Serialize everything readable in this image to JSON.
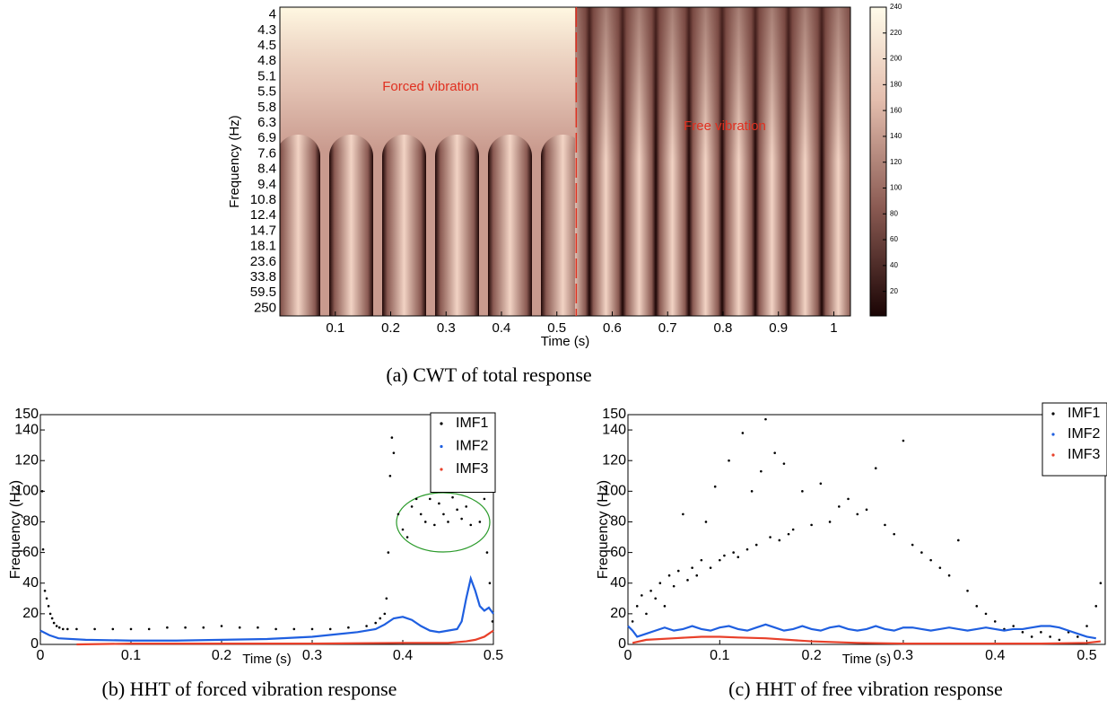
{
  "chart_data": [
    {
      "type": "heatmap",
      "caption": "(a) CWT of total response",
      "xlabel": "Time (s)",
      "ylabel": "Frequency (Hz)",
      "categories": [
        "4",
        "4.3",
        "4.5",
        "4.8",
        "5.1",
        "5.5",
        "5.8",
        "6.3",
        "6.9",
        "7.6",
        "8.4",
        "9.4",
        "10.8",
        "12.4",
        "14.7",
        "18.1",
        "23.6",
        "33.8",
        "59.5",
        "250"
      ],
      "xlim": [
        0,
        1.03
      ],
      "xticks": [
        0.1,
        0.2,
        0.3,
        0.4,
        0.5,
        0.6,
        0.7,
        0.8,
        0.9,
        1
      ],
      "annotations": [
        "Forced vibration",
        "Free vibration"
      ],
      "vline": 0.535,
      "vline_color": "#e03020",
      "colorbar": {
        "lim": [
          1,
          240
        ],
        "ticks": [
          20,
          40,
          60,
          80,
          100,
          120,
          140,
          160,
          180,
          200,
          220,
          240
        ]
      }
    },
    {
      "type": "scatter",
      "caption": "(b) HHT of forced vibration response",
      "xlabel": "Time (s)",
      "ylabel": "Frequency (Hz)",
      "xlim": [
        0,
        0.5
      ],
      "ylim": [
        0,
        150
      ],
      "xticks": [
        0,
        0.1,
        0.2,
        0.3,
        0.4,
        0.5
      ],
      "yticks": [
        0,
        20,
        40,
        60,
        80,
        100,
        120,
        140,
        150
      ],
      "legend": "upper right",
      "series": [
        {
          "name": "IMF1",
          "color": "#000000",
          "connect": false,
          "x": [
            0.002,
            0.003,
            0.005,
            0.007,
            0.009,
            0.011,
            0.013,
            0.015,
            0.018,
            0.021,
            0.025,
            0.03,
            0.04,
            0.06,
            0.08,
            0.1,
            0.12,
            0.14,
            0.16,
            0.18,
            0.2,
            0.22,
            0.24,
            0.26,
            0.28,
            0.3,
            0.32,
            0.34,
            0.36,
            0.37,
            0.375,
            0.38,
            0.382,
            0.384,
            0.386,
            0.388,
            0.39,
            0.395,
            0.4,
            0.405,
            0.41,
            0.415,
            0.42,
            0.425,
            0.43,
            0.435,
            0.44,
            0.445,
            0.45,
            0.455,
            0.46,
            0.465,
            0.47,
            0.475,
            0.48,
            0.485,
            0.49,
            0.493,
            0.496,
            0.499
          ],
          "values": [
            100,
            62,
            35,
            30,
            25,
            20,
            17,
            14,
            12,
            11,
            10,
            10,
            10,
            10,
            10,
            10,
            10,
            11,
            11,
            11,
            12,
            11,
            11,
            10,
            10,
            10,
            10,
            11,
            12,
            14,
            17,
            20,
            30,
            60,
            110,
            135,
            125,
            85,
            75,
            70,
            90,
            95,
            85,
            80,
            95,
            78,
            92,
            85,
            80,
            96,
            88,
            82,
            90,
            78,
            100,
            80,
            95,
            60,
            40,
            15
          ]
        },
        {
          "name": "IMF2",
          "color": "#1f5fe0",
          "connect": true,
          "x": [
            0,
            0.01,
            0.02,
            0.05,
            0.1,
            0.15,
            0.2,
            0.25,
            0.3,
            0.35,
            0.37,
            0.38,
            0.39,
            0.4,
            0.41,
            0.42,
            0.43,
            0.44,
            0.45,
            0.46,
            0.465,
            0.47,
            0.475,
            0.48,
            0.485,
            0.49,
            0.495,
            0.5
          ],
          "values": [
            9,
            6,
            4,
            3,
            2.5,
            2.5,
            3,
            3.5,
            5,
            8,
            10,
            13,
            17,
            18,
            16,
            12,
            9,
            8,
            9,
            10,
            15,
            30,
            43,
            35,
            25,
            22,
            24,
            20
          ]
        },
        {
          "name": "IMF3",
          "color": "#e8402a",
          "connect": true,
          "x": [
            0.04,
            0.1,
            0.2,
            0.3,
            0.4,
            0.45,
            0.47,
            0.48,
            0.49,
            0.5
          ],
          "values": [
            0,
            0.5,
            0.5,
            0.5,
            1,
            1,
            2,
            3,
            5,
            9
          ]
        }
      ]
    },
    {
      "type": "scatter",
      "caption": "(c) HHT of free vibration response",
      "xlabel": "Time (s)",
      "ylabel": "Frequency (Hz)",
      "xlim": [
        0,
        0.52
      ],
      "ylim": [
        0,
        150
      ],
      "xticks": [
        0,
        0.1,
        0.2,
        0.3,
        0.4,
        0.5
      ],
      "yticks": [
        0,
        20,
        40,
        60,
        80,
        100,
        120,
        140,
        150
      ],
      "legend": "upper right",
      "series": [
        {
          "name": "IMF1",
          "color": "#000000",
          "connect": false,
          "x": [
            0.005,
            0.01,
            0.015,
            0.02,
            0.025,
            0.03,
            0.035,
            0.04,
            0.045,
            0.05,
            0.055,
            0.06,
            0.065,
            0.07,
            0.075,
            0.08,
            0.085,
            0.09,
            0.095,
            0.1,
            0.105,
            0.11,
            0.115,
            0.12,
            0.125,
            0.13,
            0.135,
            0.14,
            0.145,
            0.15,
            0.155,
            0.16,
            0.165,
            0.17,
            0.175,
            0.18,
            0.19,
            0.2,
            0.21,
            0.22,
            0.23,
            0.24,
            0.25,
            0.26,
            0.27,
            0.28,
            0.29,
            0.3,
            0.31,
            0.32,
            0.33,
            0.34,
            0.35,
            0.36,
            0.37,
            0.38,
            0.39,
            0.4,
            0.41,
            0.42,
            0.43,
            0.44,
            0.45,
            0.46,
            0.47,
            0.48,
            0.49,
            0.5,
            0.51,
            0.515
          ],
          "values": [
            15,
            25,
            32,
            20,
            35,
            30,
            40,
            25,
            45,
            38,
            48,
            85,
            42,
            50,
            45,
            55,
            80,
            50,
            103,
            55,
            58,
            120,
            60,
            57,
            138,
            62,
            100,
            65,
            113,
            147,
            70,
            125,
            68,
            118,
            72,
            75,
            100,
            78,
            105,
            80,
            90,
            95,
            85,
            88,
            115,
            78,
            72,
            133,
            65,
            60,
            55,
            50,
            45,
            68,
            35,
            25,
            20,
            15,
            10,
            12,
            8,
            5,
            8,
            5,
            3,
            8,
            5,
            12,
            25,
            40
          ]
        },
        {
          "name": "IMF2",
          "color": "#1f5fe0",
          "connect": true,
          "x": [
            0,
            0.005,
            0.01,
            0.02,
            0.03,
            0.04,
            0.05,
            0.06,
            0.07,
            0.08,
            0.09,
            0.1,
            0.11,
            0.12,
            0.13,
            0.14,
            0.15,
            0.16,
            0.17,
            0.18,
            0.19,
            0.2,
            0.21,
            0.22,
            0.23,
            0.24,
            0.25,
            0.26,
            0.27,
            0.28,
            0.29,
            0.3,
            0.31,
            0.32,
            0.33,
            0.34,
            0.35,
            0.36,
            0.37,
            0.38,
            0.39,
            0.4,
            0.41,
            0.42,
            0.43,
            0.44,
            0.45,
            0.46,
            0.47,
            0.48,
            0.49,
            0.5,
            0.51
          ],
          "values": [
            12,
            9,
            5,
            7,
            9,
            11,
            9,
            10,
            12,
            10,
            9,
            11,
            12,
            10,
            9,
            11,
            13,
            11,
            9,
            10,
            12,
            10,
            9,
            11,
            12,
            10,
            9,
            10,
            12,
            10,
            9,
            11,
            11,
            10,
            9,
            10,
            11,
            10,
            9,
            10,
            11,
            10,
            9,
            10,
            10,
            11,
            12,
            12,
            11,
            9,
            7,
            5,
            4
          ]
        },
        {
          "name": "IMF3",
          "color": "#e8402a",
          "connect": true,
          "x": [
            0.005,
            0.02,
            0.05,
            0.08,
            0.1,
            0.12,
            0.15,
            0.2,
            0.25,
            0.3,
            0.35,
            0.4,
            0.45,
            0.5,
            0.515
          ],
          "values": [
            1,
            3,
            4,
            5,
            5,
            4.5,
            4,
            2,
            1,
            0.5,
            0.5,
            0.5,
            0.5,
            1,
            2
          ]
        }
      ]
    }
  ]
}
